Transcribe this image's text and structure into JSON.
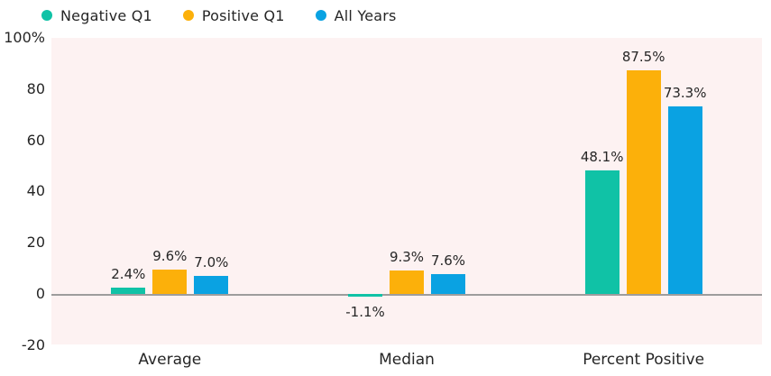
{
  "chart_data": {
    "type": "bar",
    "title": "",
    "categories": [
      "Average",
      "Median",
      "Percent Positive"
    ],
    "series": [
      {
        "name": "Negative Q1",
        "color": "#10c2a6",
        "values": [
          2.4,
          -1.1,
          48.1
        ],
        "labels": [
          "2.4%",
          "-1.1%",
          "48.1%"
        ]
      },
      {
        "name": "Positive Q1",
        "color": "#fcb00a",
        "values": [
          9.6,
          9.3,
          87.5
        ],
        "labels": [
          "9.6%",
          "9.3%",
          "87.5%"
        ]
      },
      {
        "name": "All Years",
        "color": "#0aa2e2",
        "values": [
          7.0,
          7.6,
          73.3
        ],
        "labels": [
          "7.0%",
          "7.6%",
          "73.3%"
        ]
      }
    ],
    "y_axis": {
      "min": -20,
      "max": 100,
      "ticks": [
        {
          "value": 100,
          "label": "100%"
        },
        {
          "value": 80,
          "label": "80"
        },
        {
          "value": 60,
          "label": "60"
        },
        {
          "value": 40,
          "label": "40"
        },
        {
          "value": 20,
          "label": "20"
        },
        {
          "value": 0,
          "label": "0"
        },
        {
          "value": -20,
          "label": "-20"
        }
      ]
    },
    "legend_position": "top-left",
    "grid": false,
    "colors": {
      "plot_background": "#fdf2f2",
      "page_background": "#ffffff",
      "axis_line": "#9d9d9d",
      "text": "#262626"
    }
  }
}
